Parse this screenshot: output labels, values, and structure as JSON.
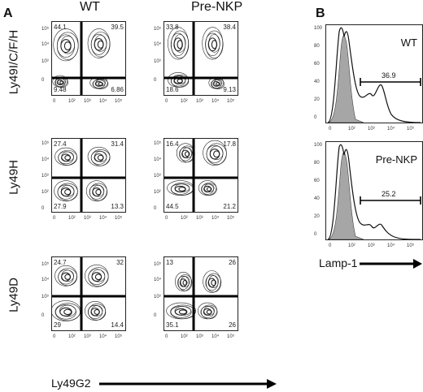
{
  "panel_labels": {
    "a": "A",
    "b": "B"
  },
  "column_titles": {
    "wt": "WT",
    "prenkp": "Pre-NKP"
  },
  "row_labels": [
    "Ly49I/C/F/H",
    "Ly49H",
    "Ly49D"
  ],
  "x_axis_title": "Ly49G2",
  "hist_axis_title": "Lamp-1",
  "y_ticks": [
    "10⁵",
    "10⁴",
    "10³",
    "0"
  ],
  "y_ticks_row2": [
    "10⁵",
    "10⁴",
    "10³",
    "10²",
    "0"
  ],
  "x_ticks": [
    "0",
    "10²",
    "10³",
    "10⁴",
    "10⁵"
  ],
  "hist_y_ticks": [
    "100",
    "80",
    "60",
    "40",
    "20",
    "0"
  ],
  "contour_plots": [
    {
      "row": 0,
      "col": 0,
      "ul": "44.1",
      "ur": "39.5",
      "ll": "9.48",
      "lr": "6.86"
    },
    {
      "row": 0,
      "col": 1,
      "ul": "33.8",
      "ur": "38.4",
      "ll": "18.6",
      "lr": "9.13"
    },
    {
      "row": 1,
      "col": 0,
      "ul": "27.4",
      "ur": "31.4",
      "ll": "27.9",
      "lr": "13.3"
    },
    {
      "row": 1,
      "col": 1,
      "ul": "16.4",
      "ur": "17.8",
      "ll": "44.5",
      "lr": "21.2"
    },
    {
      "row": 2,
      "col": 0,
      "ul": "24.7",
      "ur": "32",
      "ll": "29",
      "lr": "14.4"
    },
    {
      "row": 2,
      "col": 1,
      "ul": "13",
      "ur": "26",
      "ll": "35.1",
      "lr": "26"
    }
  ],
  "histograms": [
    {
      "name": "WT",
      "gate": "36.9"
    },
    {
      "name": "Pre-NKP",
      "gate": "25.2"
    }
  ],
  "colors": {
    "line": "#111111",
    "fill": "#a6a6a6"
  }
}
